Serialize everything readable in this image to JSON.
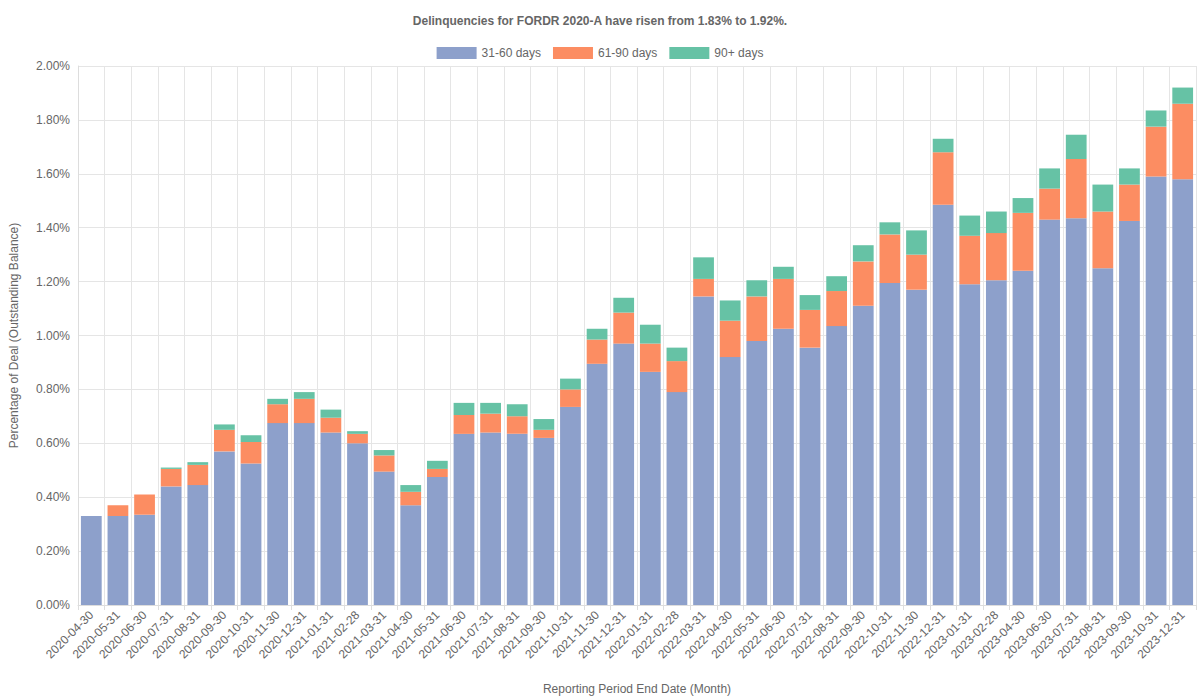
{
  "chart_data": {
    "type": "bar",
    "title": "Delinquencies for FORDR 2020-A have risen from 1.83% to 1.92%.",
    "x_label": "Reporting Period End Date (Month)",
    "y_label": "Percentage of Deal (Outstanding Balance)",
    "stacked": true,
    "grid": true,
    "legend": "top",
    "categories": [
      "2020-04-30",
      "2020-05-31",
      "2020-06-30",
      "2020-07-31",
      "2020-08-31",
      "2020-09-30",
      "2020-10-31",
      "2020-11-30",
      "2020-12-31",
      "2021-01-31",
      "2021-02-28",
      "2021-03-31",
      "2021-04-30",
      "2021-05-31",
      "2021-06-30",
      "2021-07-31",
      "2021-08-31",
      "2021-09-30",
      "2021-10-31",
      "2021-11-30",
      "2021-12-31",
      "2022-01-31",
      "2022-02-28",
      "2022-03-31",
      "2022-04-30",
      "2022-05-31",
      "2022-06-30",
      "2022-07-31",
      "2022-08-31",
      "2022-09-30",
      "2022-10-31",
      "2022-11-30",
      "2022-12-31",
      "2023-01-31",
      "2023-02-28",
      "2023-04-30",
      "2023-06-30",
      "2023-07-31",
      "2023-08-31",
      "2023-09-30",
      "2023-10-31",
      "2023-12-31"
    ],
    "series": [
      {
        "name": "31-60 days",
        "color": "#8da0cb",
        "values": [
          0.33,
          0.33,
          0.335,
          0.44,
          0.445,
          0.57,
          0.525,
          0.675,
          0.675,
          0.64,
          0.6,
          0.495,
          0.37,
          0.475,
          0.635,
          0.64,
          0.635,
          0.62,
          0.735,
          0.895,
          0.97,
          0.865,
          0.79,
          1.145,
          0.92,
          0.98,
          1.025,
          0.955,
          1.035,
          1.11,
          1.195,
          1.17,
          1.485,
          1.19,
          1.205,
          1.24,
          1.43,
          1.435,
          1.25,
          1.425,
          1.59,
          1.58
        ]
      },
      {
        "name": "61-90 days",
        "color": "#fc8d62",
        "values": [
          0,
          0.04,
          0.075,
          0.065,
          0.075,
          0.08,
          0.08,
          0.07,
          0.09,
          0.055,
          0.035,
          0.06,
          0.05,
          0.03,
          0.07,
          0.07,
          0.065,
          0.03,
          0.065,
          0.09,
          0.115,
          0.105,
          0.115,
          0.065,
          0.135,
          0.165,
          0.185,
          0.14,
          0.13,
          0.165,
          0.18,
          0.13,
          0.195,
          0.18,
          0.175,
          0.215,
          0.115,
          0.22,
          0.21,
          0.135,
          0.185,
          0.28
        ]
      },
      {
        "name": "90+ days",
        "color": "#66c2a5",
        "values": [
          0,
          0,
          0,
          0.005,
          0.01,
          0.02,
          0.025,
          0.02,
          0.025,
          0.03,
          0.01,
          0.02,
          0.025,
          0.03,
          0.045,
          0.04,
          0.045,
          0.04,
          0.04,
          0.04,
          0.055,
          0.07,
          0.05,
          0.08,
          0.075,
          0.06,
          0.045,
          0.055,
          0.055,
          0.06,
          0.045,
          0.09,
          0.05,
          0.075,
          0.08,
          0.055,
          0.075,
          0.09,
          0.1,
          0.06,
          0.06,
          0.06
        ]
      }
    ],
    "ylim": [
      0,
      2
    ],
    "yticks": [
      {
        "value": 0,
        "label": "0.00%"
      },
      {
        "value": 0.2,
        "label": "0.20%"
      },
      {
        "value": 0.4,
        "label": "0.40%"
      },
      {
        "value": 0.6,
        "label": "0.60%"
      },
      {
        "value": 0.8,
        "label": "0.80%"
      },
      {
        "value": 1.0,
        "label": "1.00%"
      },
      {
        "value": 1.2,
        "label": "1.20%"
      },
      {
        "value": 1.4,
        "label": "1.40%"
      },
      {
        "value": 1.6,
        "label": "1.60%"
      },
      {
        "value": 1.8,
        "label": "1.80%"
      },
      {
        "value": 2.0,
        "label": "2.00%"
      }
    ]
  }
}
